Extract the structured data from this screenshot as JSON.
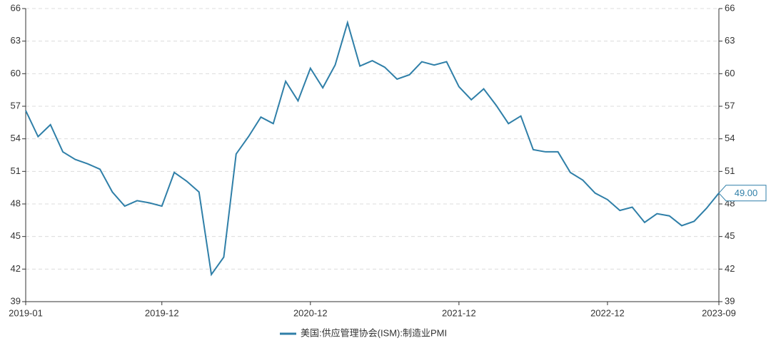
{
  "chart_data": {
    "type": "line",
    "categories": [
      "2019-01",
      null,
      null,
      null,
      null,
      null,
      null,
      null,
      null,
      null,
      null,
      "2019-12",
      null,
      null,
      null,
      null,
      null,
      null,
      null,
      null,
      null,
      null,
      null,
      "2020-12",
      null,
      null,
      null,
      null,
      null,
      null,
      null,
      null,
      null,
      null,
      null,
      "2021-12",
      null,
      null,
      null,
      null,
      null,
      null,
      null,
      null,
      null,
      null,
      null,
      "2022-12",
      null,
      null,
      null,
      null,
      null,
      null,
      null,
      null,
      "2023-09"
    ],
    "series": [
      {
        "name": "美国:供应管理协会(ISM):制造业PMI",
        "color": "#2f7fa8",
        "values": [
          56.6,
          54.2,
          55.3,
          52.8,
          52.1,
          51.7,
          51.2,
          49.1,
          47.8,
          48.3,
          48.1,
          47.8,
          50.9,
          50.1,
          49.1,
          41.5,
          43.1,
          52.6,
          54.2,
          56.0,
          55.4,
          59.3,
          57.5,
          60.5,
          58.7,
          60.8,
          64.7,
          60.7,
          61.2,
          60.6,
          59.5,
          59.9,
          61.1,
          60.8,
          61.1,
          58.8,
          57.6,
          58.6,
          57.1,
          55.4,
          56.1,
          53.0,
          52.8,
          52.8,
          50.9,
          50.2,
          49.0,
          48.4,
          47.4,
          47.7,
          46.3,
          47.1,
          46.9,
          46.0,
          46.4,
          47.6,
          49.0
        ],
        "value_labels": [
          null,
          null,
          null,
          null,
          null,
          null,
          null,
          null,
          null,
          null,
          null,
          null,
          null,
          null,
          null,
          null,
          null,
          null,
          null,
          null,
          null,
          null,
          null,
          null,
          null,
          null,
          null,
          null,
          null,
          null,
          null,
          null,
          null,
          null,
          null,
          null,
          null,
          null,
          null,
          null,
          null,
          null,
          null,
          null,
          null,
          null,
          null,
          null,
          null,
          null,
          null,
          null,
          null,
          null,
          null,
          null,
          "49.00"
        ]
      }
    ],
    "ylim": [
      39,
      66
    ],
    "yticks": [
      39,
      42,
      45,
      48,
      51,
      54,
      57,
      60,
      63,
      66
    ],
    "y2lim": [
      39,
      66
    ],
    "y2ticks": [
      39,
      42,
      45,
      48,
      51,
      54,
      57,
      60,
      63,
      66
    ],
    "grid": true,
    "legend": "bottom"
  }
}
